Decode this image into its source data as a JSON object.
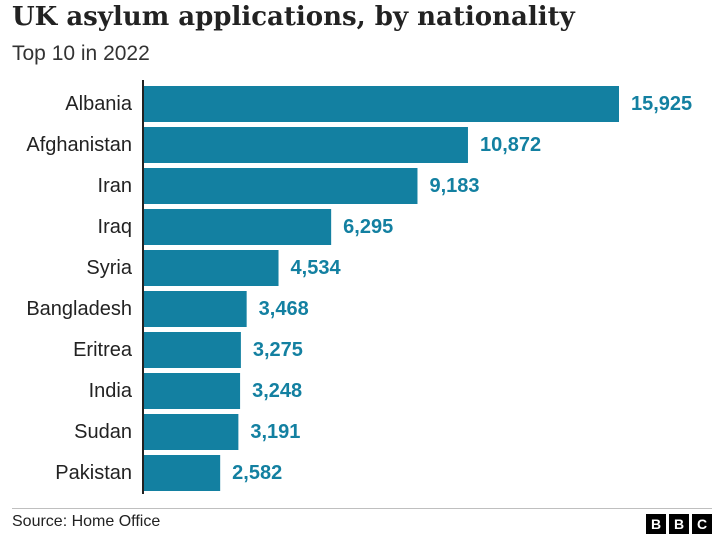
{
  "chart_data": {
    "type": "bar",
    "orientation": "horizontal",
    "title": "UK asylum applications, by nationality",
    "subtitle": "Top 10 in 2022",
    "categories": [
      "Albania",
      "Afghanistan",
      "Iran",
      "Iraq",
      "Syria",
      "Bangladesh",
      "Eritrea",
      "India",
      "Sudan",
      "Pakistan"
    ],
    "values": [
      15925,
      10872,
      9183,
      6295,
      4534,
      3468,
      3275,
      3248,
      3191,
      2582
    ],
    "value_labels": [
      "15,925",
      "10,872",
      "9,183",
      "6,295",
      "4,534",
      "3,468",
      "3,275",
      "3,248",
      "3,191",
      "2,582"
    ],
    "xlim": [
      0,
      15925
    ],
    "grid": false,
    "legend": "none",
    "colors": {
      "bar": "#1380a1",
      "value_text": "#1380a1",
      "axis": "#222222"
    }
  },
  "footer": {
    "source": "Source: Home Office",
    "logo": [
      "B",
      "B",
      "C"
    ]
  }
}
